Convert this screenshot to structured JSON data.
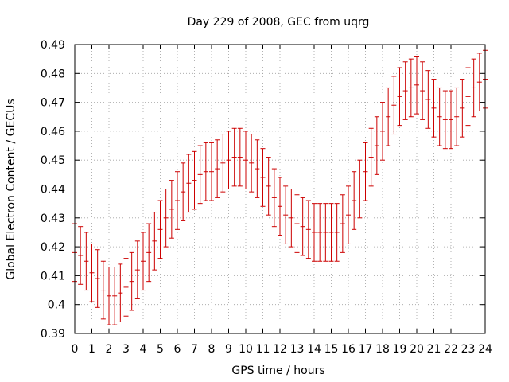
{
  "chart_data": {
    "type": "line",
    "title": "Day 229 of 2008, GEC from uqrg",
    "xlabel": "GPS time / hours",
    "ylabel": "Global Electron Content / GECUs",
    "xlim": [
      0,
      24
    ],
    "ylim": [
      0.39,
      0.49
    ],
    "xticks": [
      "0",
      "1",
      "2",
      "3",
      "4",
      "5",
      "6",
      "7",
      "8",
      "9",
      "10",
      "11",
      "12",
      "13",
      "14",
      "15",
      "16",
      "17",
      "18",
      "19",
      "20",
      "21",
      "22",
      "23",
      "24"
    ],
    "yticks": [
      "0.39",
      "0.4",
      "0.41",
      "0.42",
      "0.43",
      "0.44",
      "0.45",
      "0.46",
      "0.47",
      "0.48",
      "0.49"
    ],
    "grid": true,
    "series": [
      {
        "name": "GEC",
        "color": "#cc0000",
        "error": 0.01,
        "x": [
          0,
          0.333,
          0.667,
          1,
          1.333,
          1.667,
          2,
          2.333,
          2.667,
          3,
          3.333,
          3.667,
          4,
          4.333,
          4.667,
          5,
          5.333,
          5.667,
          6,
          6.333,
          6.667,
          7,
          7.333,
          7.667,
          8,
          8.333,
          8.667,
          9,
          9.333,
          9.667,
          10,
          10.333,
          10.667,
          11,
          11.333,
          11.667,
          12,
          12.333,
          12.667,
          13,
          13.333,
          13.667,
          14,
          14.333,
          14.667,
          15,
          15.333,
          15.667,
          16,
          16.333,
          16.667,
          17,
          17.333,
          17.667,
          18,
          18.333,
          18.667,
          19,
          19.333,
          19.667,
          20,
          20.333,
          20.667,
          21,
          21.333,
          21.667,
          22,
          22.333,
          22.667,
          23,
          23.333,
          23.667,
          24
        ],
        "y": [
          0.418,
          0.417,
          0.415,
          0.411,
          0.409,
          0.405,
          0.403,
          0.403,
          0.404,
          0.406,
          0.408,
          0.412,
          0.415,
          0.418,
          0.422,
          0.426,
          0.43,
          0.433,
          0.436,
          0.439,
          0.442,
          0.443,
          0.445,
          0.446,
          0.446,
          0.447,
          0.449,
          0.45,
          0.451,
          0.451,
          0.45,
          0.449,
          0.447,
          0.444,
          0.441,
          0.437,
          0.434,
          0.431,
          0.43,
          0.428,
          0.427,
          0.426,
          0.425,
          0.425,
          0.425,
          0.425,
          0.425,
          0.428,
          0.431,
          0.436,
          0.44,
          0.446,
          0.451,
          0.455,
          0.46,
          0.465,
          0.469,
          0.472,
          0.474,
          0.475,
          0.476,
          0.474,
          0.471,
          0.468,
          0.465,
          0.464,
          0.464,
          0.465,
          0.468,
          0.472,
          0.475,
          0.477,
          0.478
        ]
      }
    ]
  }
}
